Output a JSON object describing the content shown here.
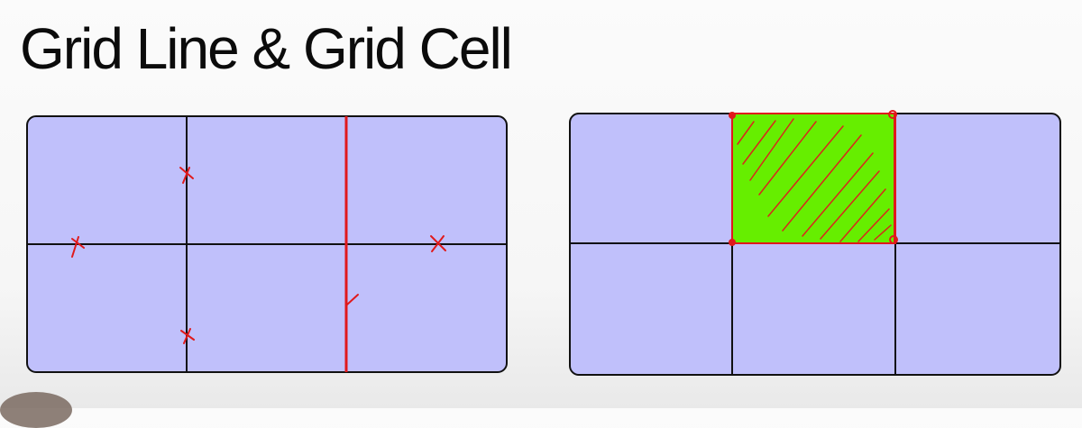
{
  "slide": {
    "title": "Grid Line & Grid Cell"
  },
  "colors": {
    "grid_fill": "#c0c0fb",
    "grid_line": "#111111",
    "annotation": "#e0191b",
    "cell_fill": "#66ee00"
  },
  "left_grid": {
    "name": "grid-lines-example",
    "columns": 3,
    "rows": 2,
    "highlighted_line": "column-line-3",
    "marks": [
      "column-line-2-mark",
      "column-line-2-mark",
      "row-line-2-mark",
      "row-line-2-mark",
      "column-line-3-mark"
    ]
  },
  "right_grid": {
    "name": "grid-cell-example",
    "columns": 3,
    "rows": 2,
    "highlighted_cell": {
      "row": 1,
      "column": 2
    }
  }
}
